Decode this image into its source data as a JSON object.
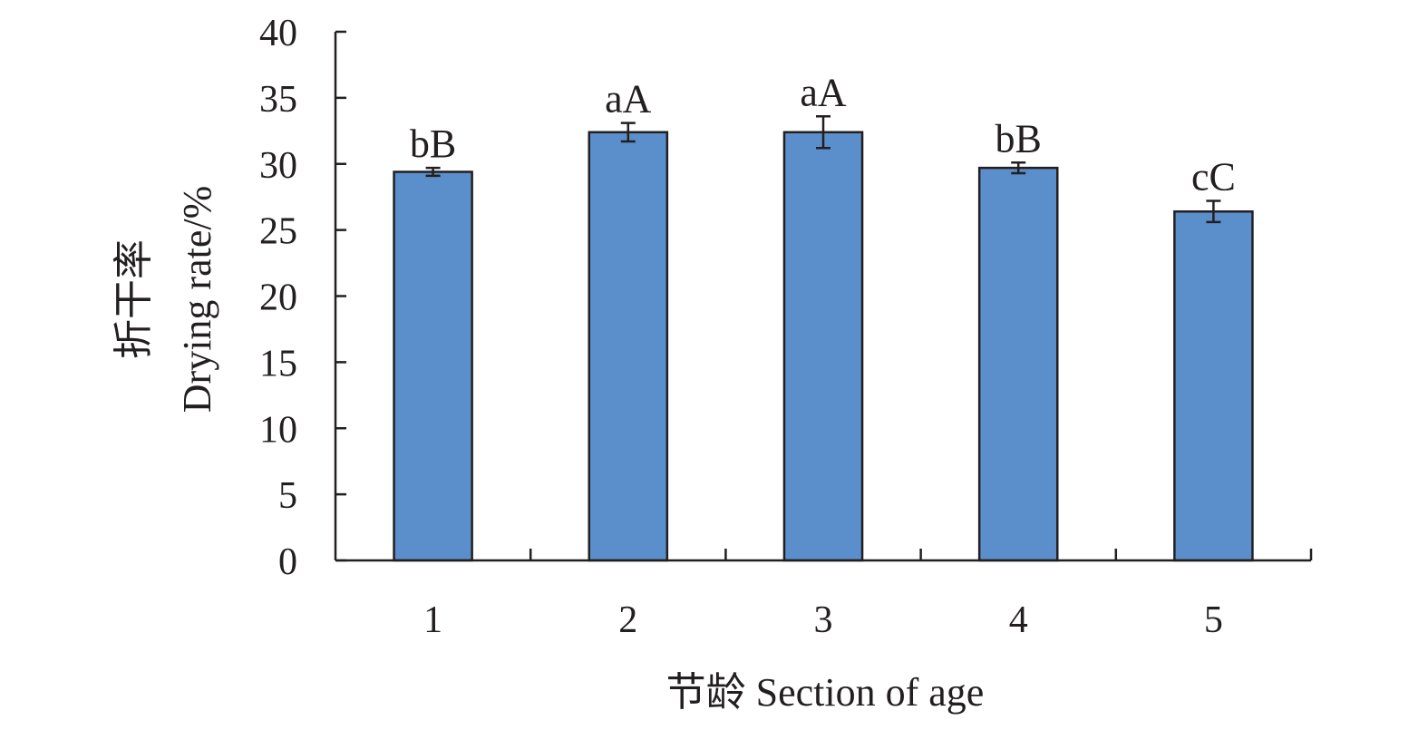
{
  "chart_data": {
    "type": "bar",
    "categories": [
      "1",
      "2",
      "3",
      "4",
      "5"
    ],
    "values": [
      29.4,
      32.4,
      32.4,
      29.7,
      26.4
    ],
    "errors": [
      0.3,
      0.7,
      1.2,
      0.4,
      0.8
    ],
    "significance_labels": [
      "bB",
      "aA",
      "aA",
      "bB",
      "cC"
    ],
    "ylim": [
      0,
      40
    ],
    "yticks": [
      0,
      5,
      10,
      15,
      20,
      25,
      30,
      35,
      40
    ],
    "ylabel_line1": "折干率",
    "ylabel_line2": "Drying rate/%",
    "xlabel": "节龄 Section of age",
    "bar_color": "#5b8fcb",
    "grid": false
  }
}
